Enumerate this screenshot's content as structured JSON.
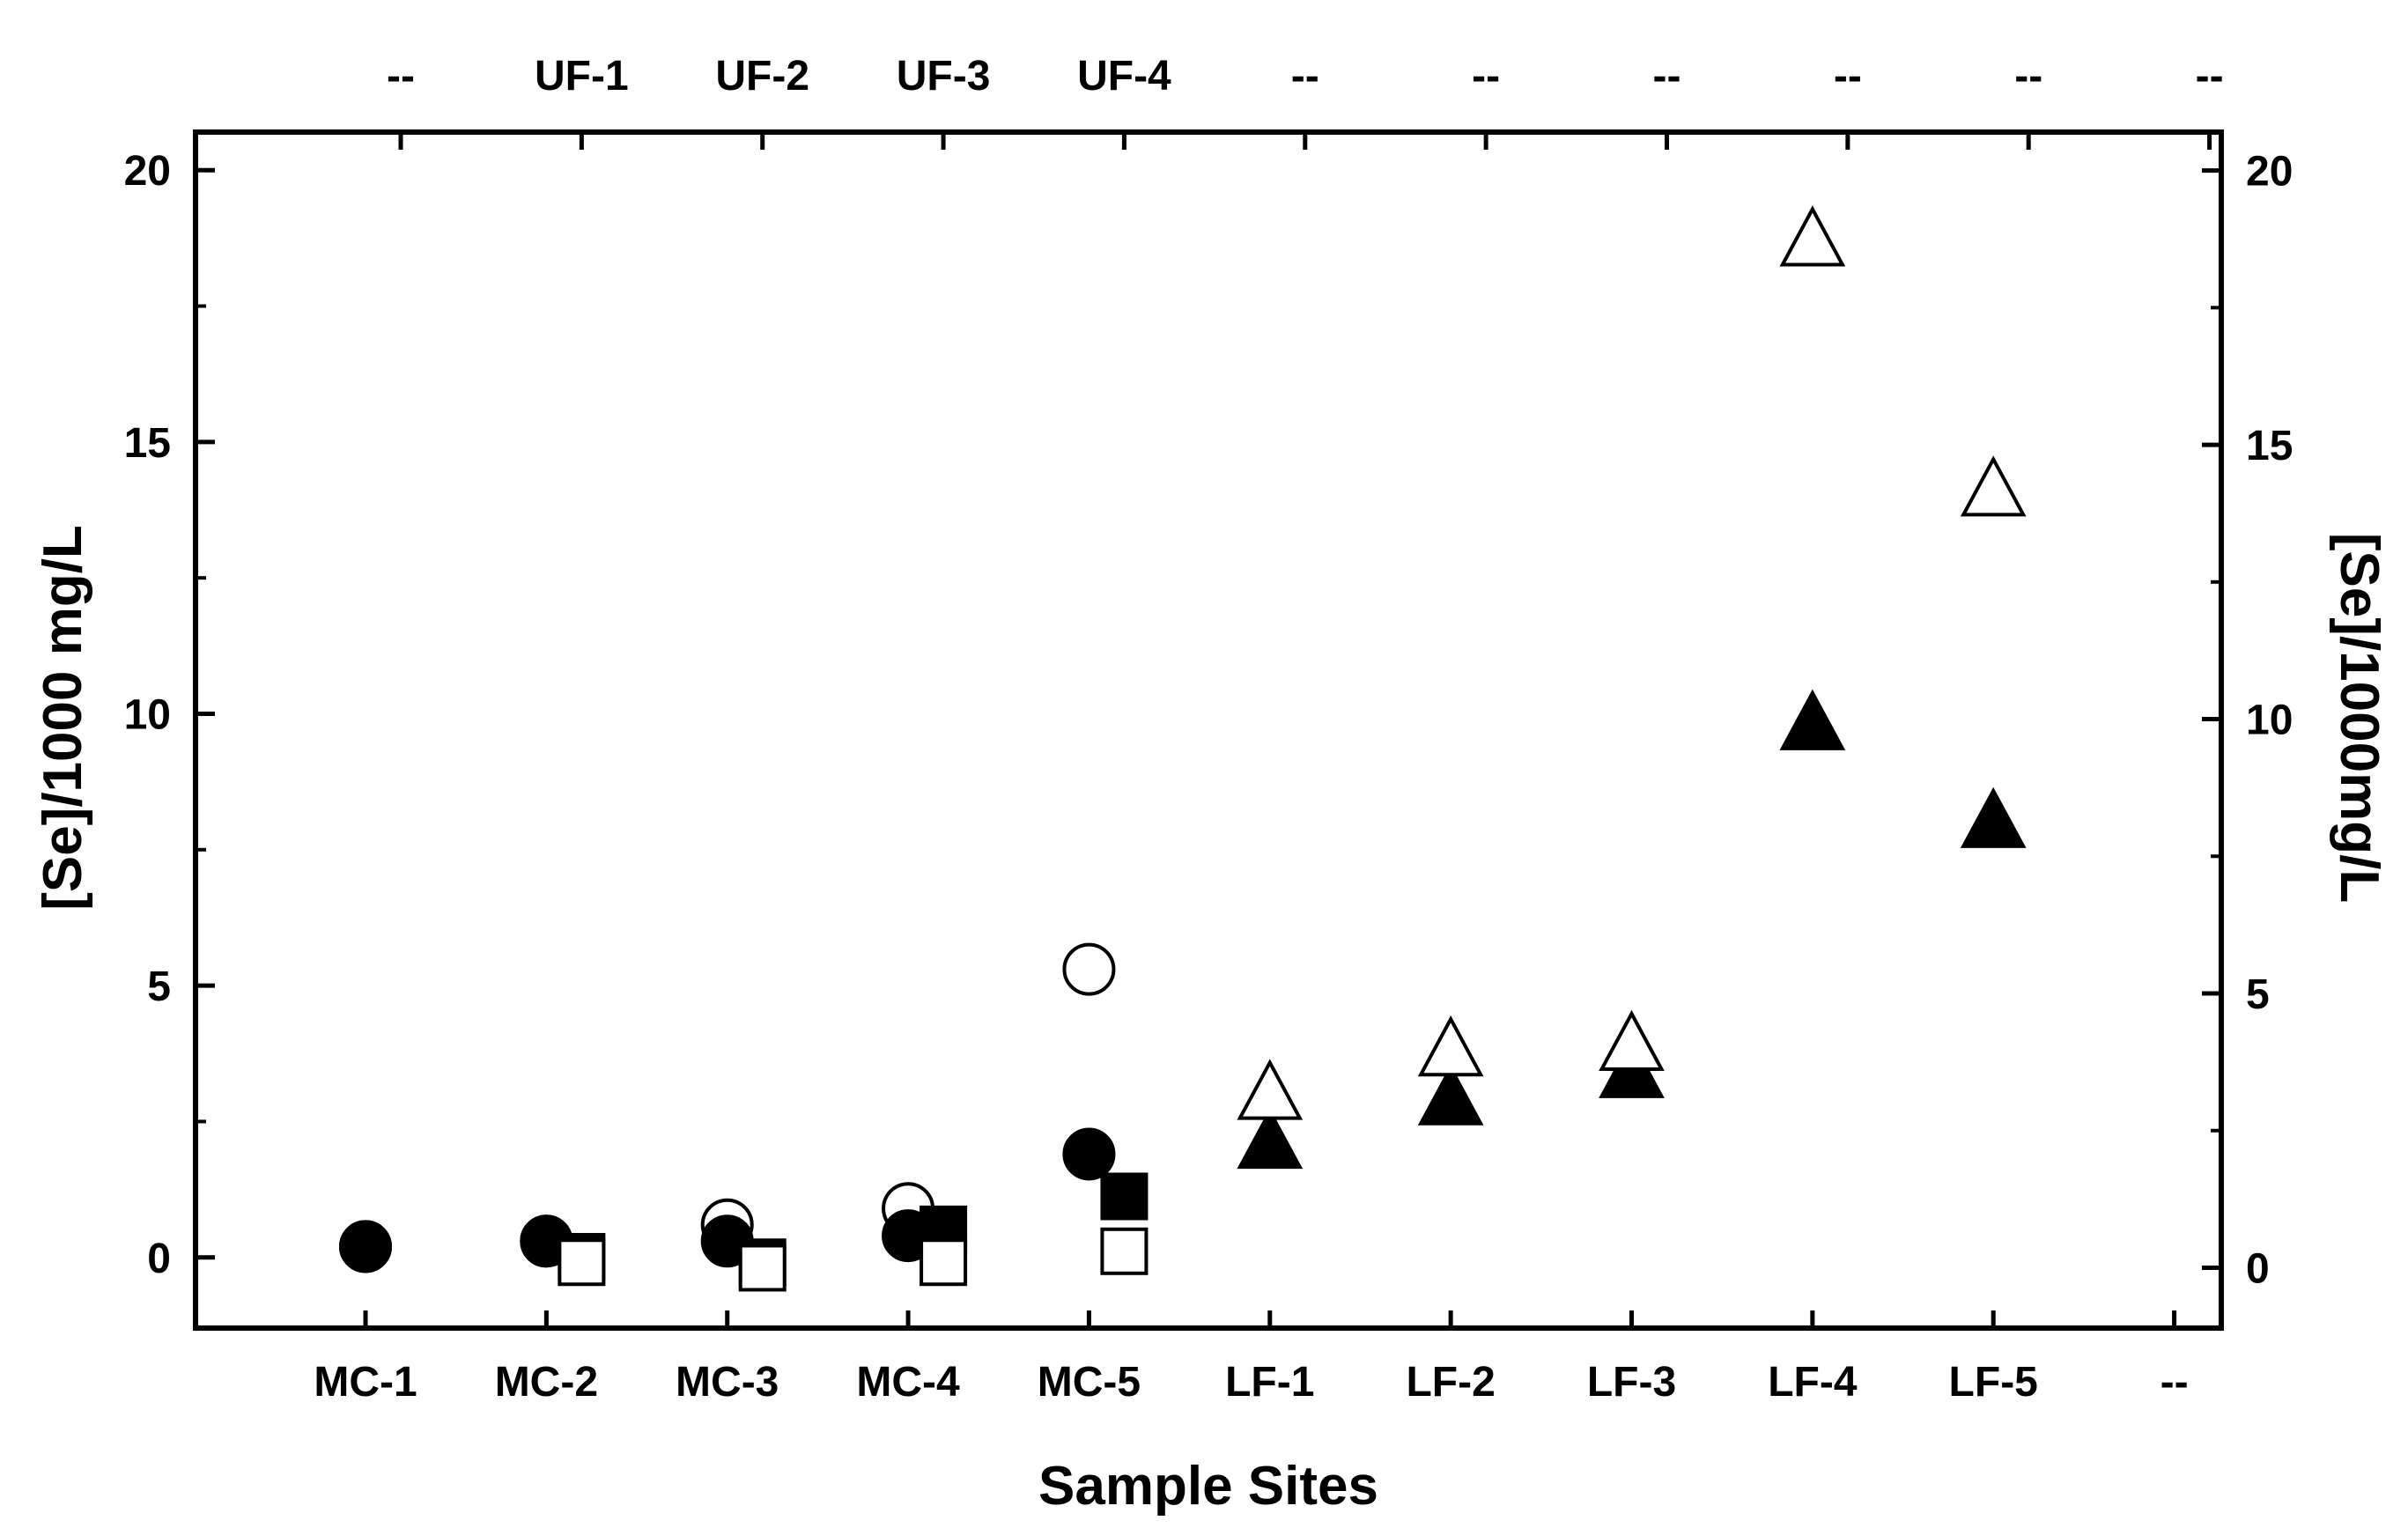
{
  "chart_data": {
    "type": "scatter",
    "xlabel": "Sample Sites",
    "ylabel_left": "[Se]/1000 mg/L",
    "ylabel_right": "[Se]/1000mg/L",
    "bottom_categories": [
      "MC-1",
      "MC-2",
      "MC-3",
      "MC-4",
      "MC-5",
      "LF-1",
      "LF-2",
      "LF-3",
      "LF-4",
      "LF-5",
      "--"
    ],
    "top_categories": [
      "--",
      "UF-1",
      "UF-2",
      "UF-3",
      "UF-4",
      "--",
      "--",
      "--",
      "--",
      "--",
      "--"
    ],
    "ylim_left": [
      -1.3,
      20.7
    ],
    "ylim_right": [
      -1.1,
      20.7
    ],
    "yticks_left": [
      0,
      5,
      10,
      15,
      20
    ],
    "yticks_right": [
      0,
      5,
      10,
      15,
      20
    ],
    "grid": false,
    "series": [
      {
        "marker": "circle",
        "fill": "open",
        "axis": "bottom-left",
        "points": [
          {
            "x": "MC-1",
            "y": 0.2
          },
          {
            "x": "MC-2",
            "y": 0.3
          },
          {
            "x": "MC-3",
            "y": 0.6
          },
          {
            "x": "MC-4",
            "y": 0.9
          },
          {
            "x": "MC-5",
            "y": 5.3
          }
        ]
      },
      {
        "marker": "circle",
        "fill": "filled",
        "axis": "bottom-left",
        "points": [
          {
            "x": "MC-1",
            "y": 0.2
          },
          {
            "x": "MC-2",
            "y": 0.3
          },
          {
            "x": "MC-3",
            "y": 0.3
          },
          {
            "x": "MC-4",
            "y": 0.4
          },
          {
            "x": "MC-5",
            "y": 1.9
          }
        ]
      },
      {
        "marker": "square",
        "fill": "filled",
        "axis": "top-right",
        "points": [
          {
            "x": "UF-1",
            "y": 0.2
          },
          {
            "x": "UF-2",
            "y": 0.1
          },
          {
            "x": "UF-3",
            "y": 0.7
          },
          {
            "x": "UF-4",
            "y": 1.3
          }
        ]
      },
      {
        "marker": "square",
        "fill": "open",
        "axis": "top-right",
        "points": [
          {
            "x": "UF-1",
            "y": 0.1
          },
          {
            "x": "UF-2",
            "y": 0.0
          },
          {
            "x": "UF-3",
            "y": 0.1
          },
          {
            "x": "UF-4",
            "y": 0.3
          }
        ]
      },
      {
        "marker": "triangle",
        "fill": "filled",
        "axis": "bottom-left",
        "points": [
          {
            "x": "LF-1",
            "y": 2.1
          },
          {
            "x": "LF-2",
            "y": 2.9
          },
          {
            "x": "LF-3",
            "y": 3.4
          },
          {
            "x": "LF-4",
            "y": 9.8
          },
          {
            "x": "LF-5",
            "y": 8.0
          }
        ]
      },
      {
        "marker": "triangle",
        "fill": "open",
        "axis": "bottom-left",
        "points": [
          {
            "x": "LF-1",
            "y": 3.0
          },
          {
            "x": "LF-2",
            "y": 3.8
          },
          {
            "x": "LF-3",
            "y": 3.9
          },
          {
            "x": "LF-4",
            "y": 18.7
          },
          {
            "x": "LF-5",
            "y": 14.1
          }
        ]
      }
    ]
  }
}
